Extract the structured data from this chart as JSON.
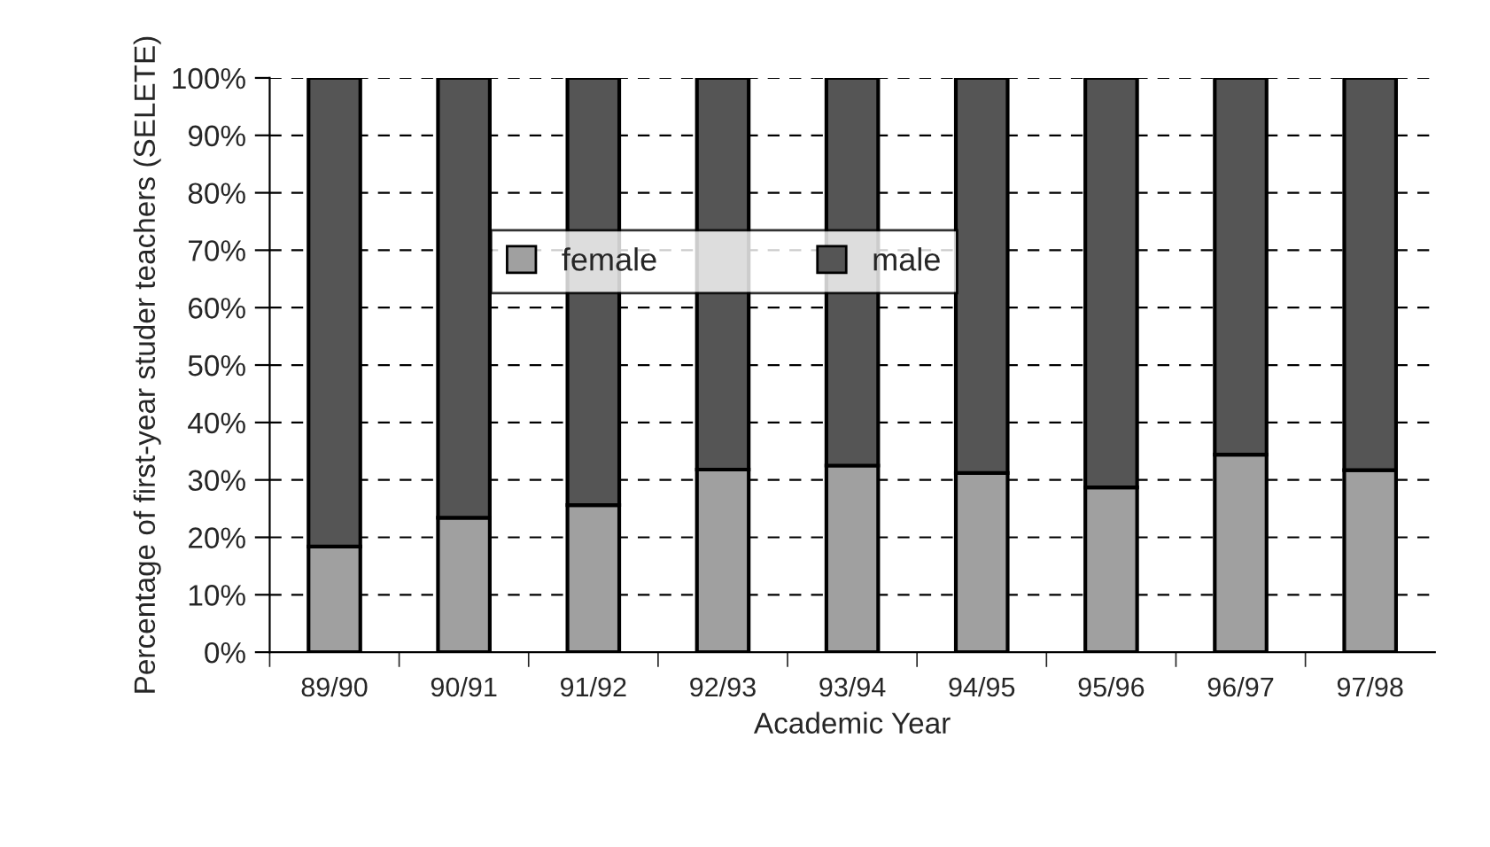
{
  "chart_data": {
    "type": "bar",
    "stacked": true,
    "xlabel": "Academic Year",
    "ylabel": "Percentage of first-year studer teachers (SELETE)",
    "categories": [
      "89/90",
      "90/91",
      "91/92",
      "92/93",
      "93/94",
      "94/95",
      "95/96",
      "96/97",
      "97/98"
    ],
    "series": [
      {
        "name": "female",
        "color": "#a0a0a0",
        "values": [
          18.4,
          23.4,
          25.6,
          31.8,
          32.5,
          31.2,
          28.7,
          34.4,
          31.7
        ]
      },
      {
        "name": "male",
        "color": "#555555",
        "values": [
          81.6,
          76.6,
          74.4,
          68.2,
          67.5,
          68.8,
          71.3,
          65.6,
          68.3
        ]
      }
    ],
    "ylim": [
      0,
      100
    ],
    "yticks": [
      {
        "value": 0,
        "label": "0%"
      },
      {
        "value": 10,
        "label": "10%"
      },
      {
        "value": 20,
        "label": "20%"
      },
      {
        "value": 30,
        "label": "30%"
      },
      {
        "value": 40,
        "label": "40%"
      },
      {
        "value": 50,
        "label": "50%"
      },
      {
        "value": 60,
        "label": "60%"
      },
      {
        "value": 70,
        "label": "70%"
      },
      {
        "value": 80,
        "label": "80%"
      },
      {
        "value": 90,
        "label": "90%"
      },
      {
        "value": 100,
        "label": "100%"
      }
    ],
    "grid": "y",
    "legend": "center"
  }
}
